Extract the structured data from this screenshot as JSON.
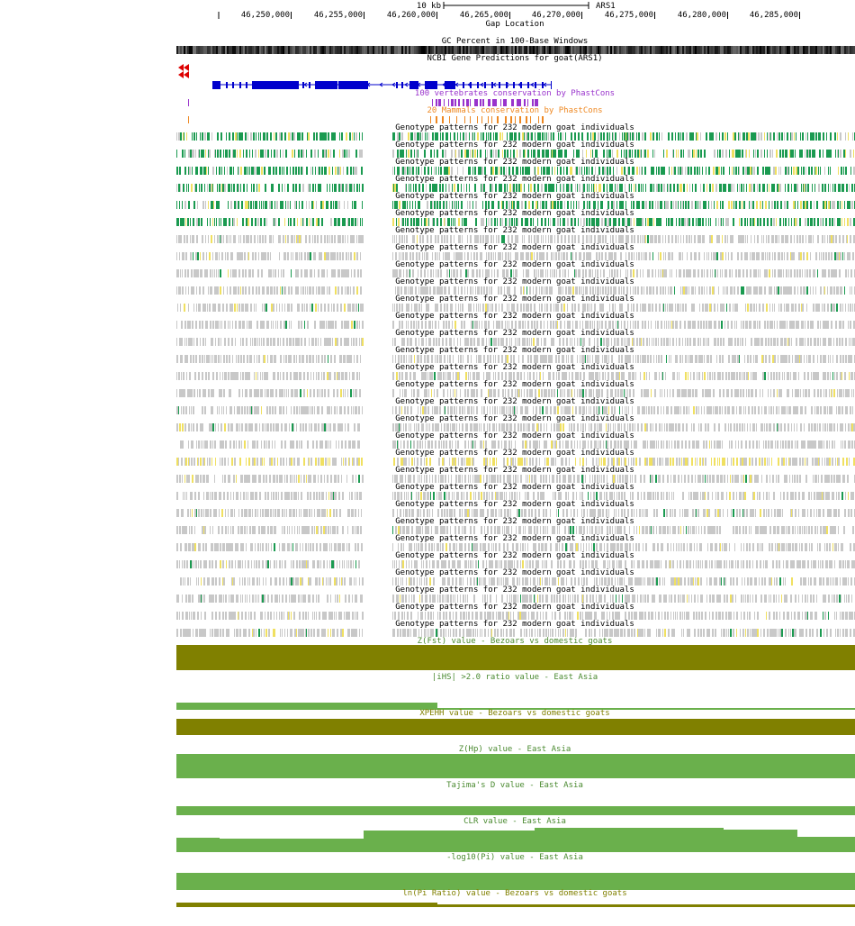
{
  "assembly": "ARS1",
  "ruler": {
    "scale_label": "10 kb",
    "assembly_label": "ARS1",
    "coordinates": [
      "46,250,000",
      "46,255,000",
      "46,260,000",
      "46,265,000",
      "46,270,000",
      "46,275,000",
      "46,280,000",
      "46,285,000"
    ]
  },
  "tracks": {
    "gap": "Gap Location",
    "gc": "GC Percent in 100-Base Windows",
    "genes": "NCBI Gene Predictions for goat(ARS1)",
    "cons100": "100 vertebrates conservation by PhastCons",
    "cons20": "20 Mammals conservation by PhastCons",
    "genotype_label": "Genotype patterns for 232 modern goat individuals",
    "zfst": "Z(Fst) value - Bezoars vs domestic goats",
    "ihs": "|iHS| >2.0 ratio value - East Asia",
    "xpehh": "XPEHH value - Bezoars vs domestic goats",
    "zhp": "Z(Hp) value - East Asia",
    "tajima": "Tajima's D value - East Asia",
    "clr": "CLR value - East Asia",
    "pi": "-log10(Pi) value - East Asia",
    "piratio": "ln(Pi Ratio) value - Bezoars vs domestic goats"
  },
  "colors": {
    "gene": "#0000cc",
    "cons100": "#9933cc",
    "cons20": "#ee8822",
    "genotype_green": "#1a9a50",
    "genotype_yellow": "#f0e060",
    "genotype_gray": "#c8c8c8",
    "olive": "#808000",
    "green": "#6ab04c",
    "cons_label": "#9933cc",
    "stat_label": "#4a8a30"
  }
}
